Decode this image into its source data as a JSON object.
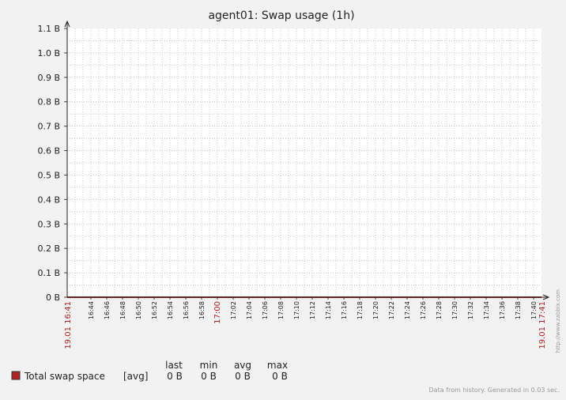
{
  "chart_data": {
    "type": "line",
    "title": "agent01: Swap usage (1h)",
    "y_ticks": [
      "0 B",
      "0.1 B",
      "0.2 B",
      "0.3 B",
      "0.4 B",
      "0.5 B",
      "0.6 B",
      "0.7 B",
      "0.8 B",
      "0.9 B",
      "1.0 B",
      "1.1 B"
    ],
    "ylim": [
      0,
      1.1
    ],
    "x_start_label": "19.01 16:41",
    "x_end_label": "19.01 17:41",
    "x_ticks": [
      "16:44",
      "16:46",
      "16:48",
      "16:50",
      "16:52",
      "16:54",
      "16:56",
      "16:58",
      "17:00",
      "17:02",
      "17:04",
      "17:06",
      "17:08",
      "17:10",
      "17:12",
      "17:14",
      "17:16",
      "17:18",
      "17:20",
      "17:22",
      "17:24",
      "17:26",
      "17:28",
      "17:30",
      "17:32",
      "17:34",
      "17:36",
      "17:38",
      "17:40"
    ],
    "highlight_ticks": [
      "17:00"
    ],
    "grid": true,
    "series": [
      {
        "name": "Total swap space",
        "color": "#b22222",
        "agg": "[avg]",
        "last": "0 B",
        "min": "0 B",
        "avg": "0 B",
        "max": "0 B",
        "values": [
          [
            0,
            0
          ],
          [
            60,
            0
          ]
        ]
      }
    ],
    "legend_headers": {
      "last": "last",
      "min": "min",
      "avg": "avg",
      "max": "max"
    }
  },
  "side_text": "http://www.zabbix.com",
  "footer_text": "Data from history. Generated in 0.03 sec."
}
